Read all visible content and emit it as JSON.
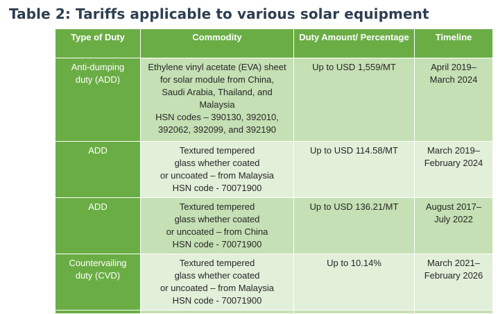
{
  "title": "Table 2: Tariffs applicable to various solar equipment",
  "table": {
    "headers": [
      "Type of Duty",
      "Commodity",
      "Duty Amount/ Percentage",
      "Timeline"
    ],
    "rows": [
      {
        "duty": "Anti-dumping\nduty (ADD)",
        "commodity": "Ethylene vinyl acetate (EVA) sheet\nfor solar module from China,\nSaudi Arabia, Thailand, and\nMalaysia\nHSN codes – 390130, 392010,\n392062, 392099, and 392190",
        "amount": "Up to USD 1,559/MT",
        "timeline": "April 2019–\nMarch 2024"
      },
      {
        "duty": "ADD",
        "commodity": "Textured tempered\nglass whether coated\nor uncoated – from Malaysia\nHSN code - 70071900",
        "amount": "Up to USD 114.58/MT",
        "timeline": "March 2019–\nFebruary 2024"
      },
      {
        "duty": "ADD",
        "commodity": "Textured tempered\nglass whether coated\nor uncoated – from China\nHSN code - 70071900",
        "amount": "Up to USD 136.21/MT",
        "timeline": "August 2017–\nJuly 2022"
      },
      {
        "duty": "Countervailing\nduty (CVD)",
        "commodity": "Textured tempered\nglass whether coated\nor uncoated – from Malaysia\nHSN code - 70071900",
        "amount": "Up to 10.14%",
        "timeline": "March 2021–\nFebruary 2026"
      }
    ]
  },
  "colors": {
    "header_green": "#6aad45",
    "row_light": "#c5e0b4",
    "row_lighter": "#e2efd9",
    "title_text": "#2d3e50"
  }
}
